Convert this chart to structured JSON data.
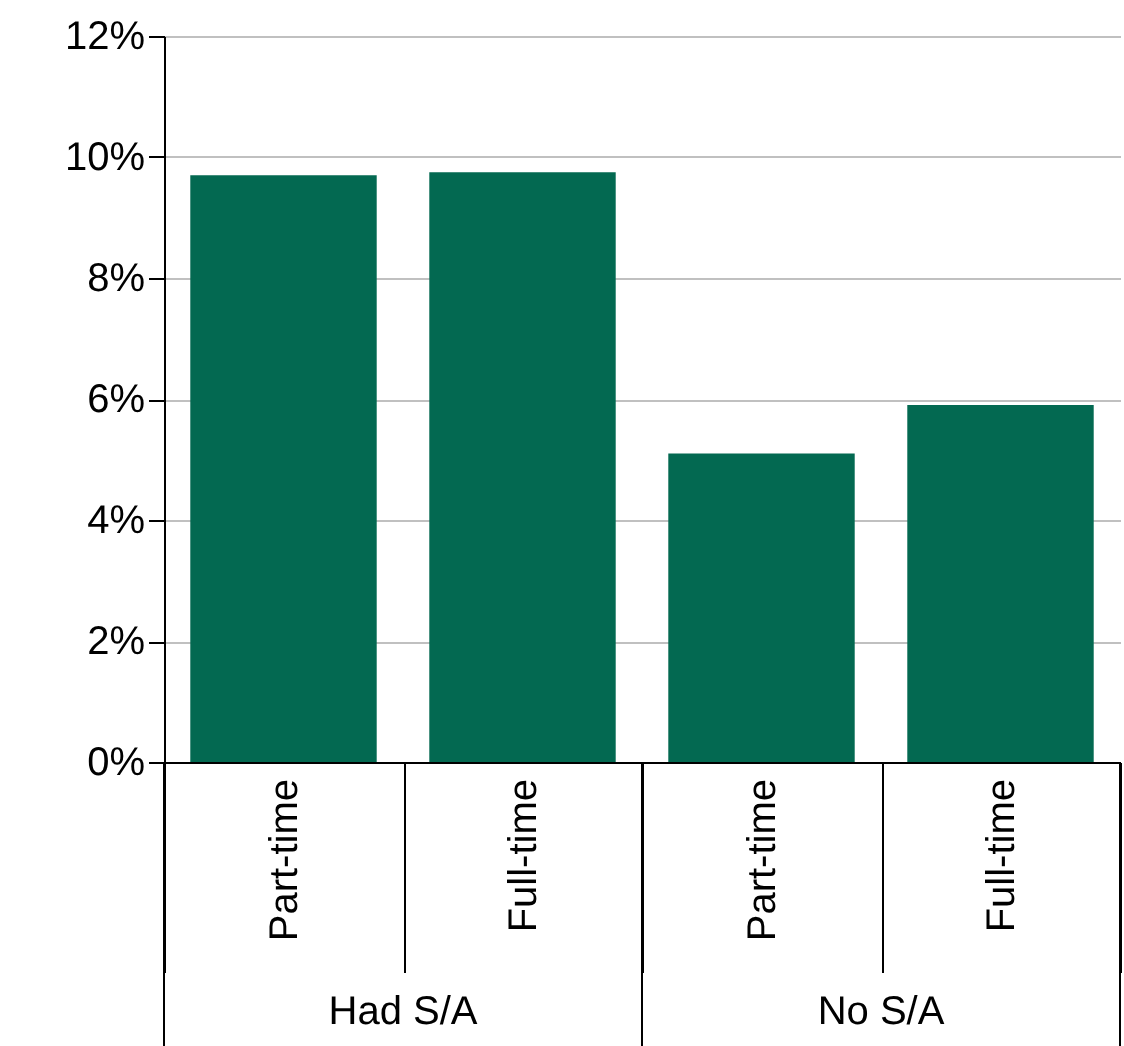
{
  "chart_data": {
    "type": "bar",
    "categories": [
      "Part-time",
      "Full-time",
      "Part-time",
      "Full-time"
    ],
    "values": [
      9.7,
      9.75,
      5.1,
      5.9
    ],
    "color": "#036951",
    "ylim": [
      0,
      12
    ],
    "yticks": [
      {
        "value": 0,
        "label": "0%"
      },
      {
        "value": 2,
        "label": "2%"
      },
      {
        "value": 4,
        "label": "4%"
      },
      {
        "value": 6,
        "label": "6%"
      },
      {
        "value": 8,
        "label": "8%"
      },
      {
        "value": 10,
        "label": "10%"
      },
      {
        "value": 12,
        "label": "12%"
      }
    ],
    "annotations": [
      "Had S/A",
      "No S/A"
    ],
    "grid": "y"
  }
}
